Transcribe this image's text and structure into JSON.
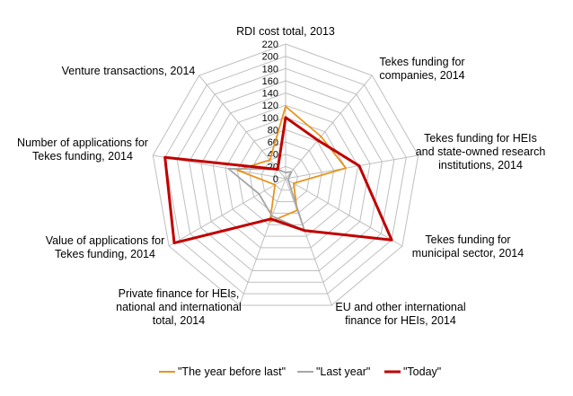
{
  "chart_data": {
    "type": "radar",
    "title": "",
    "axes": [
      "RDI cost total, 2013",
      "Tekes funding for companies, 2014",
      "Tekes funding for HEIs and state-owned research institutions, 2014",
      "Tekes funding for municipal sector, 2014",
      "EU and other international finance for HEIs, 2014",
      "Private finance for HEIs, national and international total, 2014",
      "Value of applications for Tekes funding, 2014",
      "Number of applications for Tekes funding, 2014",
      "Venture transactions, 2014"
    ],
    "axis_label_lines": [
      [
        "RDI cost total, 2013"
      ],
      [
        "Tekes funding for",
        "companies, 2014"
      ],
      [
        "Tekes funding for HEIs",
        "and state-owned research",
        "institutions, 2014"
      ],
      [
        "Tekes funding for",
        "municipal sector, 2014"
      ],
      [
        "EU and other international",
        "finance for HEIs, 2014"
      ],
      [
        "Private finance for HEIs,",
        "national and international",
        "total, 2014"
      ],
      [
        "Value of applications for",
        "Tekes funding, 2014"
      ],
      [
        "Number of applications for",
        "Tekes funding, 2014"
      ],
      [
        "Venture transactions, 2014"
      ]
    ],
    "ticks": [
      "0",
      "20",
      "40",
      "60",
      "80",
      "100",
      "120",
      "140",
      "160",
      "180",
      "200",
      "220"
    ],
    "rmin": 0,
    "rmax": 220,
    "grid": true,
    "legend_position": "bottom",
    "series": [
      {
        "name": "\"The year before last\"",
        "color": "#E8941C",
        "values": [
          118,
          90,
          100,
          15,
          55,
          75,
          20,
          80,
          40
        ]
      },
      {
        "name": "\"Last year\"",
        "color": "#A6A6A6",
        "values": [
          10,
          15,
          5,
          5,
          90,
          65,
          50,
          95,
          20
        ]
      },
      {
        "name": "\"Today\"",
        "color": "#C00000",
        "values": [
          100,
          82,
          122,
          200,
          90,
          70,
          210,
          200,
          20
        ]
      }
    ]
  }
}
